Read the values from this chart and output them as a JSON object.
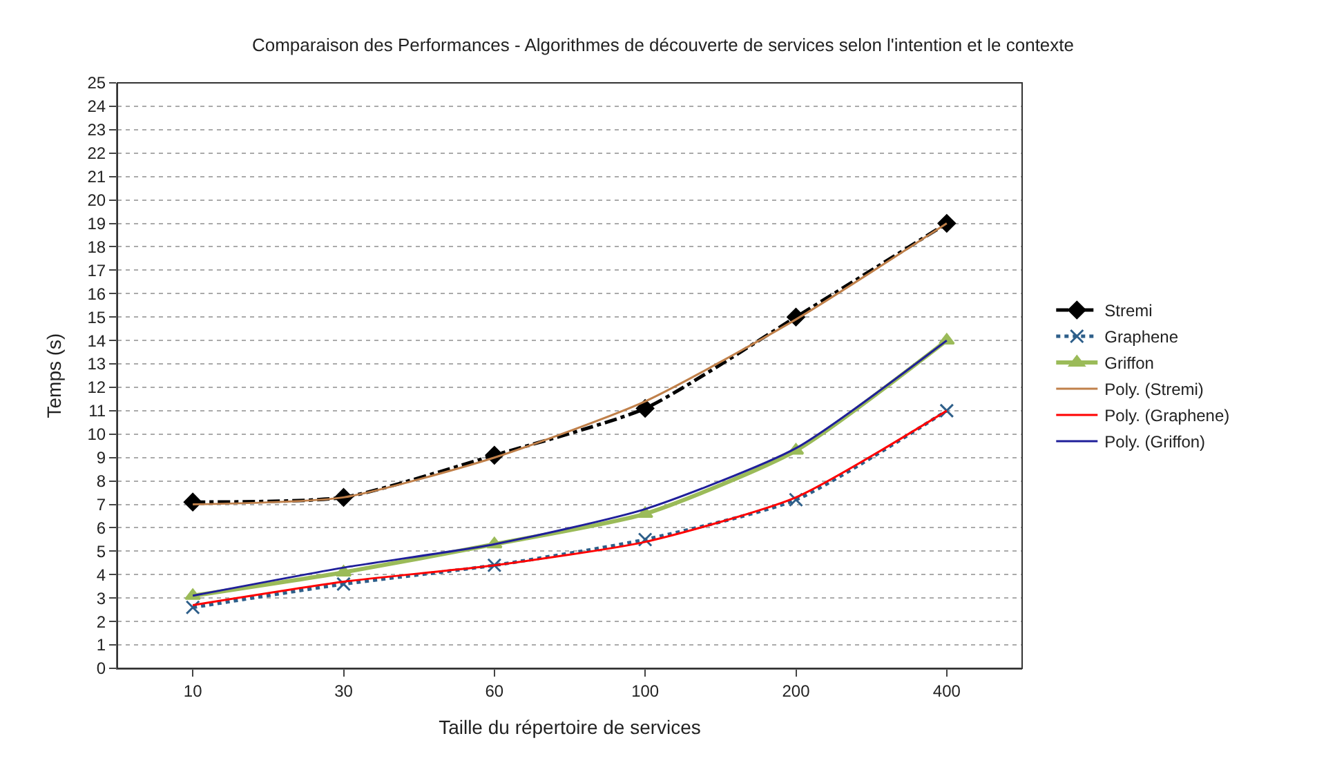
{
  "chart_data": {
    "type": "line",
    "title": "Comparaison des Performances - Algorithmes de découverte de services selon l'intention et le contexte",
    "xlabel": "Taille du répertoire de services",
    "ylabel": "Temps (s)",
    "categories": [
      "10",
      "30",
      "60",
      "100",
      "200",
      "400"
    ],
    "series": [
      {
        "name": "Stremi",
        "color": "#000000",
        "values": [
          7.1,
          7.3,
          9.1,
          11.1,
          15.0,
          19.0
        ],
        "marker": "diamond",
        "line_style": "dashed"
      },
      {
        "name": "Graphene",
        "color": "#2e5f8a",
        "values": [
          2.6,
          3.6,
          4.4,
          5.5,
          7.2,
          11.0
        ],
        "marker": "cross",
        "line_style": "dotted"
      },
      {
        "name": "Griffon",
        "color": "#9bbb59",
        "values": [
          3.1,
          4.1,
          5.3,
          6.6,
          9.3,
          14.0
        ],
        "marker": "triangle",
        "line_style": "solid"
      },
      {
        "name": "Poly. (Stremi)",
        "color": "#c0804a",
        "values": [
          7.0,
          7.3,
          9.0,
          11.4,
          14.9,
          19.0
        ],
        "marker": "none",
        "line_style": "solid"
      },
      {
        "name": "Poly. (Graphene)",
        "color": "#ff0000",
        "values": [
          2.7,
          3.7,
          4.4,
          5.4,
          7.3,
          11.0
        ],
        "marker": "none",
        "line_style": "solid"
      },
      {
        "name": "Poly. (Griffon)",
        "color": "#1f1f9a",
        "values": [
          3.1,
          4.3,
          5.3,
          6.8,
          9.4,
          14.0
        ],
        "marker": "none",
        "line_style": "solid"
      }
    ],
    "ylim": [
      0,
      25
    ],
    "yticks": [
      0,
      1,
      2,
      3,
      4,
      5,
      6,
      7,
      8,
      9,
      10,
      11,
      12,
      13,
      14,
      15,
      16,
      17,
      18,
      19,
      20,
      21,
      22,
      23,
      24,
      25
    ],
    "grid": "y",
    "legend": "right"
  }
}
